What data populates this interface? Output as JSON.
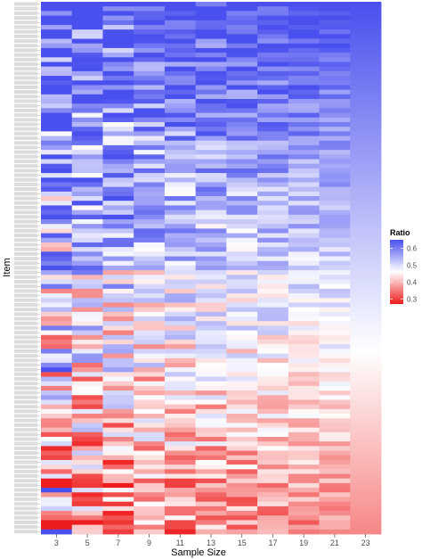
{
  "chart_data": {
    "type": "heatmap",
    "xlabel": "Sample Size",
    "ylabel": "Item",
    "x": [
      3,
      5,
      7,
      9,
      11,
      13,
      15,
      17,
      19,
      21,
      23
    ],
    "row_count": 115,
    "y_tick_labels": "not legible (gray item labels)",
    "colorscale": {
      "title": "Ratio",
      "low_color": "#ee1c1c",
      "mid_color": "#ffffff",
      "high_color": "#4a50ee",
      "min": 0.27,
      "mid": 0.46,
      "max": 0.65,
      "ticks": [
        0.3,
        0.4,
        0.5,
        0.6
      ],
      "tick_labels": [
        "0.3",
        "0.4",
        "0.5",
        "0.6"
      ]
    },
    "column_23_range": [
      0.65,
      0.36
    ],
    "column_23_description": "smooth decreasing gradient from top row to bottom row",
    "spread_by_column": [
      0.15,
      0.13,
      0.12,
      0.1,
      0.09,
      0.08,
      0.07,
      0.06,
      0.05,
      0.04,
      0.0
    ],
    "grid": false,
    "legend_position": "right"
  }
}
